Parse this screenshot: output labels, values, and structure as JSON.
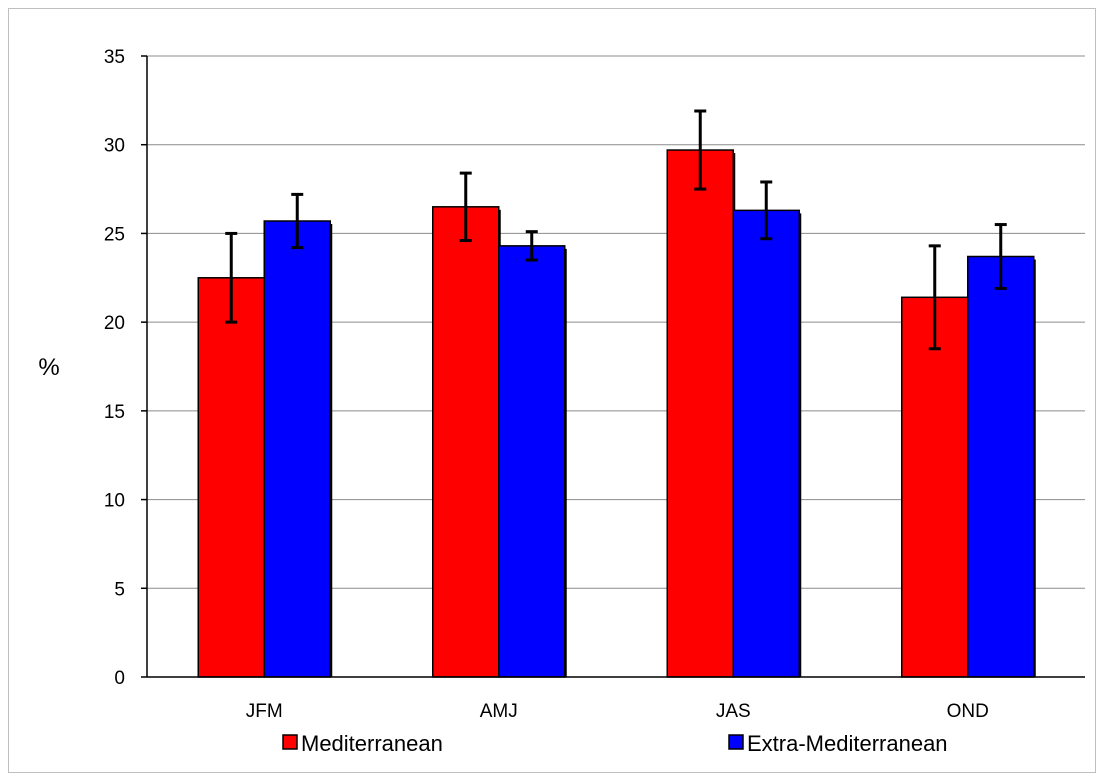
{
  "chart_data": {
    "type": "bar",
    "title": "",
    "xlabel": "",
    "ylabel": "%",
    "ylim": [
      0,
      35
    ],
    "yticks": [
      0,
      5,
      10,
      15,
      20,
      25,
      30,
      35
    ],
    "grid": true,
    "legend_position": "bottom",
    "categories": [
      "JFM",
      "AMJ",
      "JAS",
      "OND"
    ],
    "series": [
      {
        "name": "Mediterranean",
        "color": "#ff0000",
        "values": [
          22.5,
          26.5,
          29.7,
          21.4
        ],
        "error": [
          2.5,
          1.9,
          2.2,
          2.9
        ]
      },
      {
        "name": "Extra-Mediterranean",
        "color": "#0000ff",
        "values": [
          25.7,
          24.3,
          26.3,
          23.7
        ],
        "error": [
          1.5,
          0.8,
          1.6,
          1.8
        ]
      }
    ]
  }
}
